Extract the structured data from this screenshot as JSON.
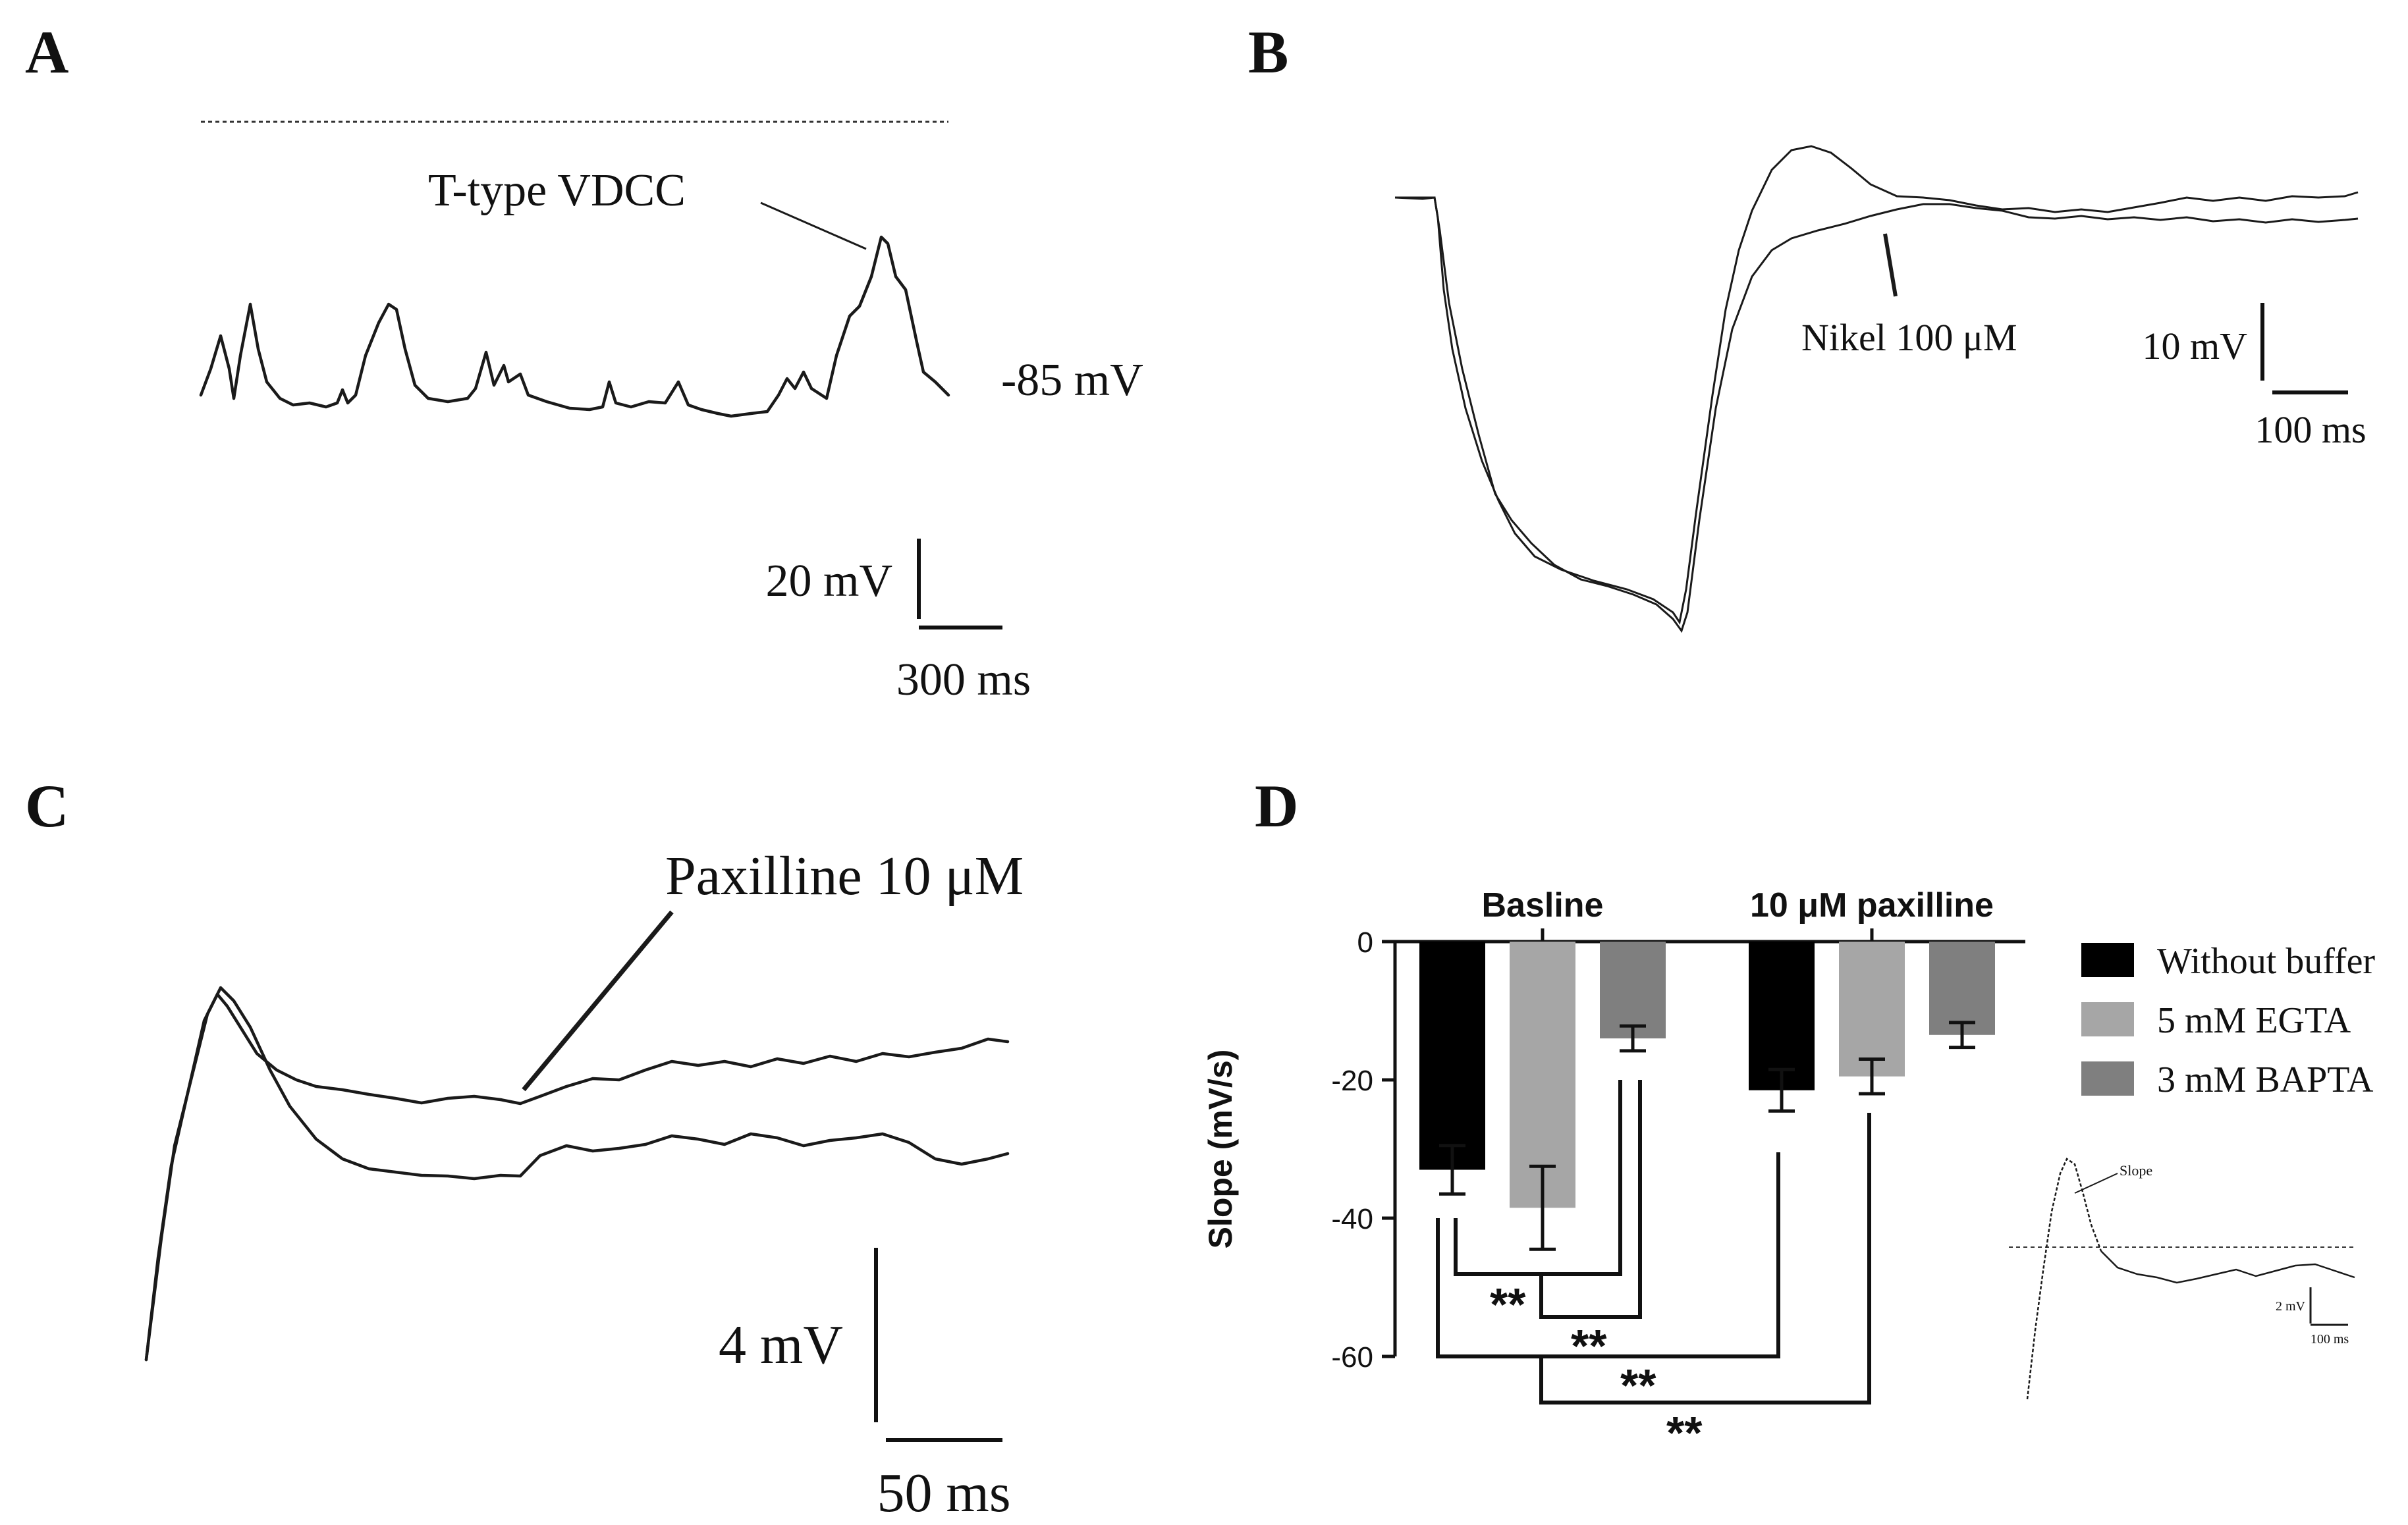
{
  "panels": {
    "a": {
      "letter": "A",
      "annotation": "T-type VDCC",
      "baseline_label": "-85 mV",
      "scalebar_v": "20 mV",
      "scalebar_t": "300 ms"
    },
    "b": {
      "letter": "B",
      "annotation": "Nikel 100 μM",
      "scalebar_v": "10 mV",
      "scalebar_t": "100 ms"
    },
    "c": {
      "letter": "C",
      "annotation": "Paxilline 10 μM",
      "scalebar_v": "4 mV",
      "scalebar_t": "50 ms"
    },
    "d": {
      "letter": "D",
      "inset": {
        "annotation": "Slope",
        "scalebar_v": "2 mV",
        "scalebar_t": "100 ms"
      }
    }
  },
  "chart_data": {
    "type": "bar",
    "title": "",
    "xlabel": "",
    "ylabel": "Slope (mV/s)",
    "ylim": [
      -60,
      0
    ],
    "yticks": [
      0,
      -20,
      -40,
      -60
    ],
    "categories": [
      "Basline",
      "10 μM paxilline"
    ],
    "series": [
      {
        "name": "Without buffer",
        "color": "#000000",
        "values": [
          -33,
          -21.5
        ],
        "errors": [
          3.5,
          3
        ]
      },
      {
        "name": "5 mM EGTA",
        "color": "#a6a6a6",
        "values": [
          -38.5,
          -19.5
        ],
        "errors": [
          6,
          2.5
        ]
      },
      {
        "name": "3 mM BAPTA",
        "color": "#7f7f7f",
        "values": [
          -14,
          -13.5
        ],
        "errors": [
          1.8,
          1.8
        ]
      }
    ],
    "legend_position": "right",
    "significance": [
      "**",
      "**",
      "**",
      "**"
    ]
  }
}
